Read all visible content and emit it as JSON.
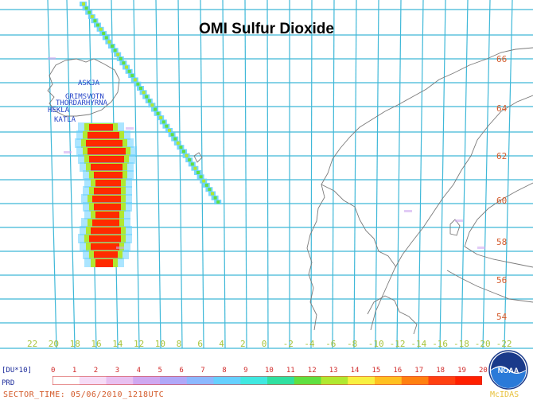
{
  "title": "OMI Sulfur Dioxide",
  "lat_labels": [
    "66",
    "64",
    "62",
    "60",
    "58",
    "56",
    "54"
  ],
  "lon_labels": [
    "22",
    "20",
    "18",
    "16",
    "14",
    "12",
    "10",
    "8",
    "6",
    "4",
    "2",
    "0",
    "-2",
    "-4",
    "-6",
    "-8",
    "-10",
    "-12",
    "-14",
    "-16",
    "-18",
    "-20",
    "-22"
  ],
  "volcanoes": [
    "ASKJA",
    "GRIMSVOTN",
    "THORDARHYRNA",
    "HEKLA",
    "KATLA"
  ],
  "colorbar": {
    "unit_label": "[DU*10]",
    "ticks": [
      "0",
      "1",
      "2",
      "3",
      "4",
      "5",
      "6",
      "7",
      "8",
      "9",
      "10",
      "11",
      "12",
      "13",
      "14",
      "15",
      "16",
      "17",
      "18",
      "19",
      "20"
    ],
    "colors": [
      "#ffffff",
      "#f6dcf6",
      "#e8c0f0",
      "#cfa8f0",
      "#b0a8f8",
      "#8cb8ff",
      "#66d0ff",
      "#40e8e0",
      "#30e0a0",
      "#60e040",
      "#b0e830",
      "#f8f040",
      "#ffc020",
      "#ff8010",
      "#ff4010",
      "#ff2000"
    ]
  },
  "prd_label": "PRD",
  "sector_time": "SECTOR_TIME: 05/06/2010_1218UTC",
  "mcidas_label": "McIDAS",
  "noaa_label": "NOAA",
  "colors": {
    "grid": "#3fb8d8",
    "coast": "#7a7a7a",
    "plume_core": "#ff2a00"
  }
}
